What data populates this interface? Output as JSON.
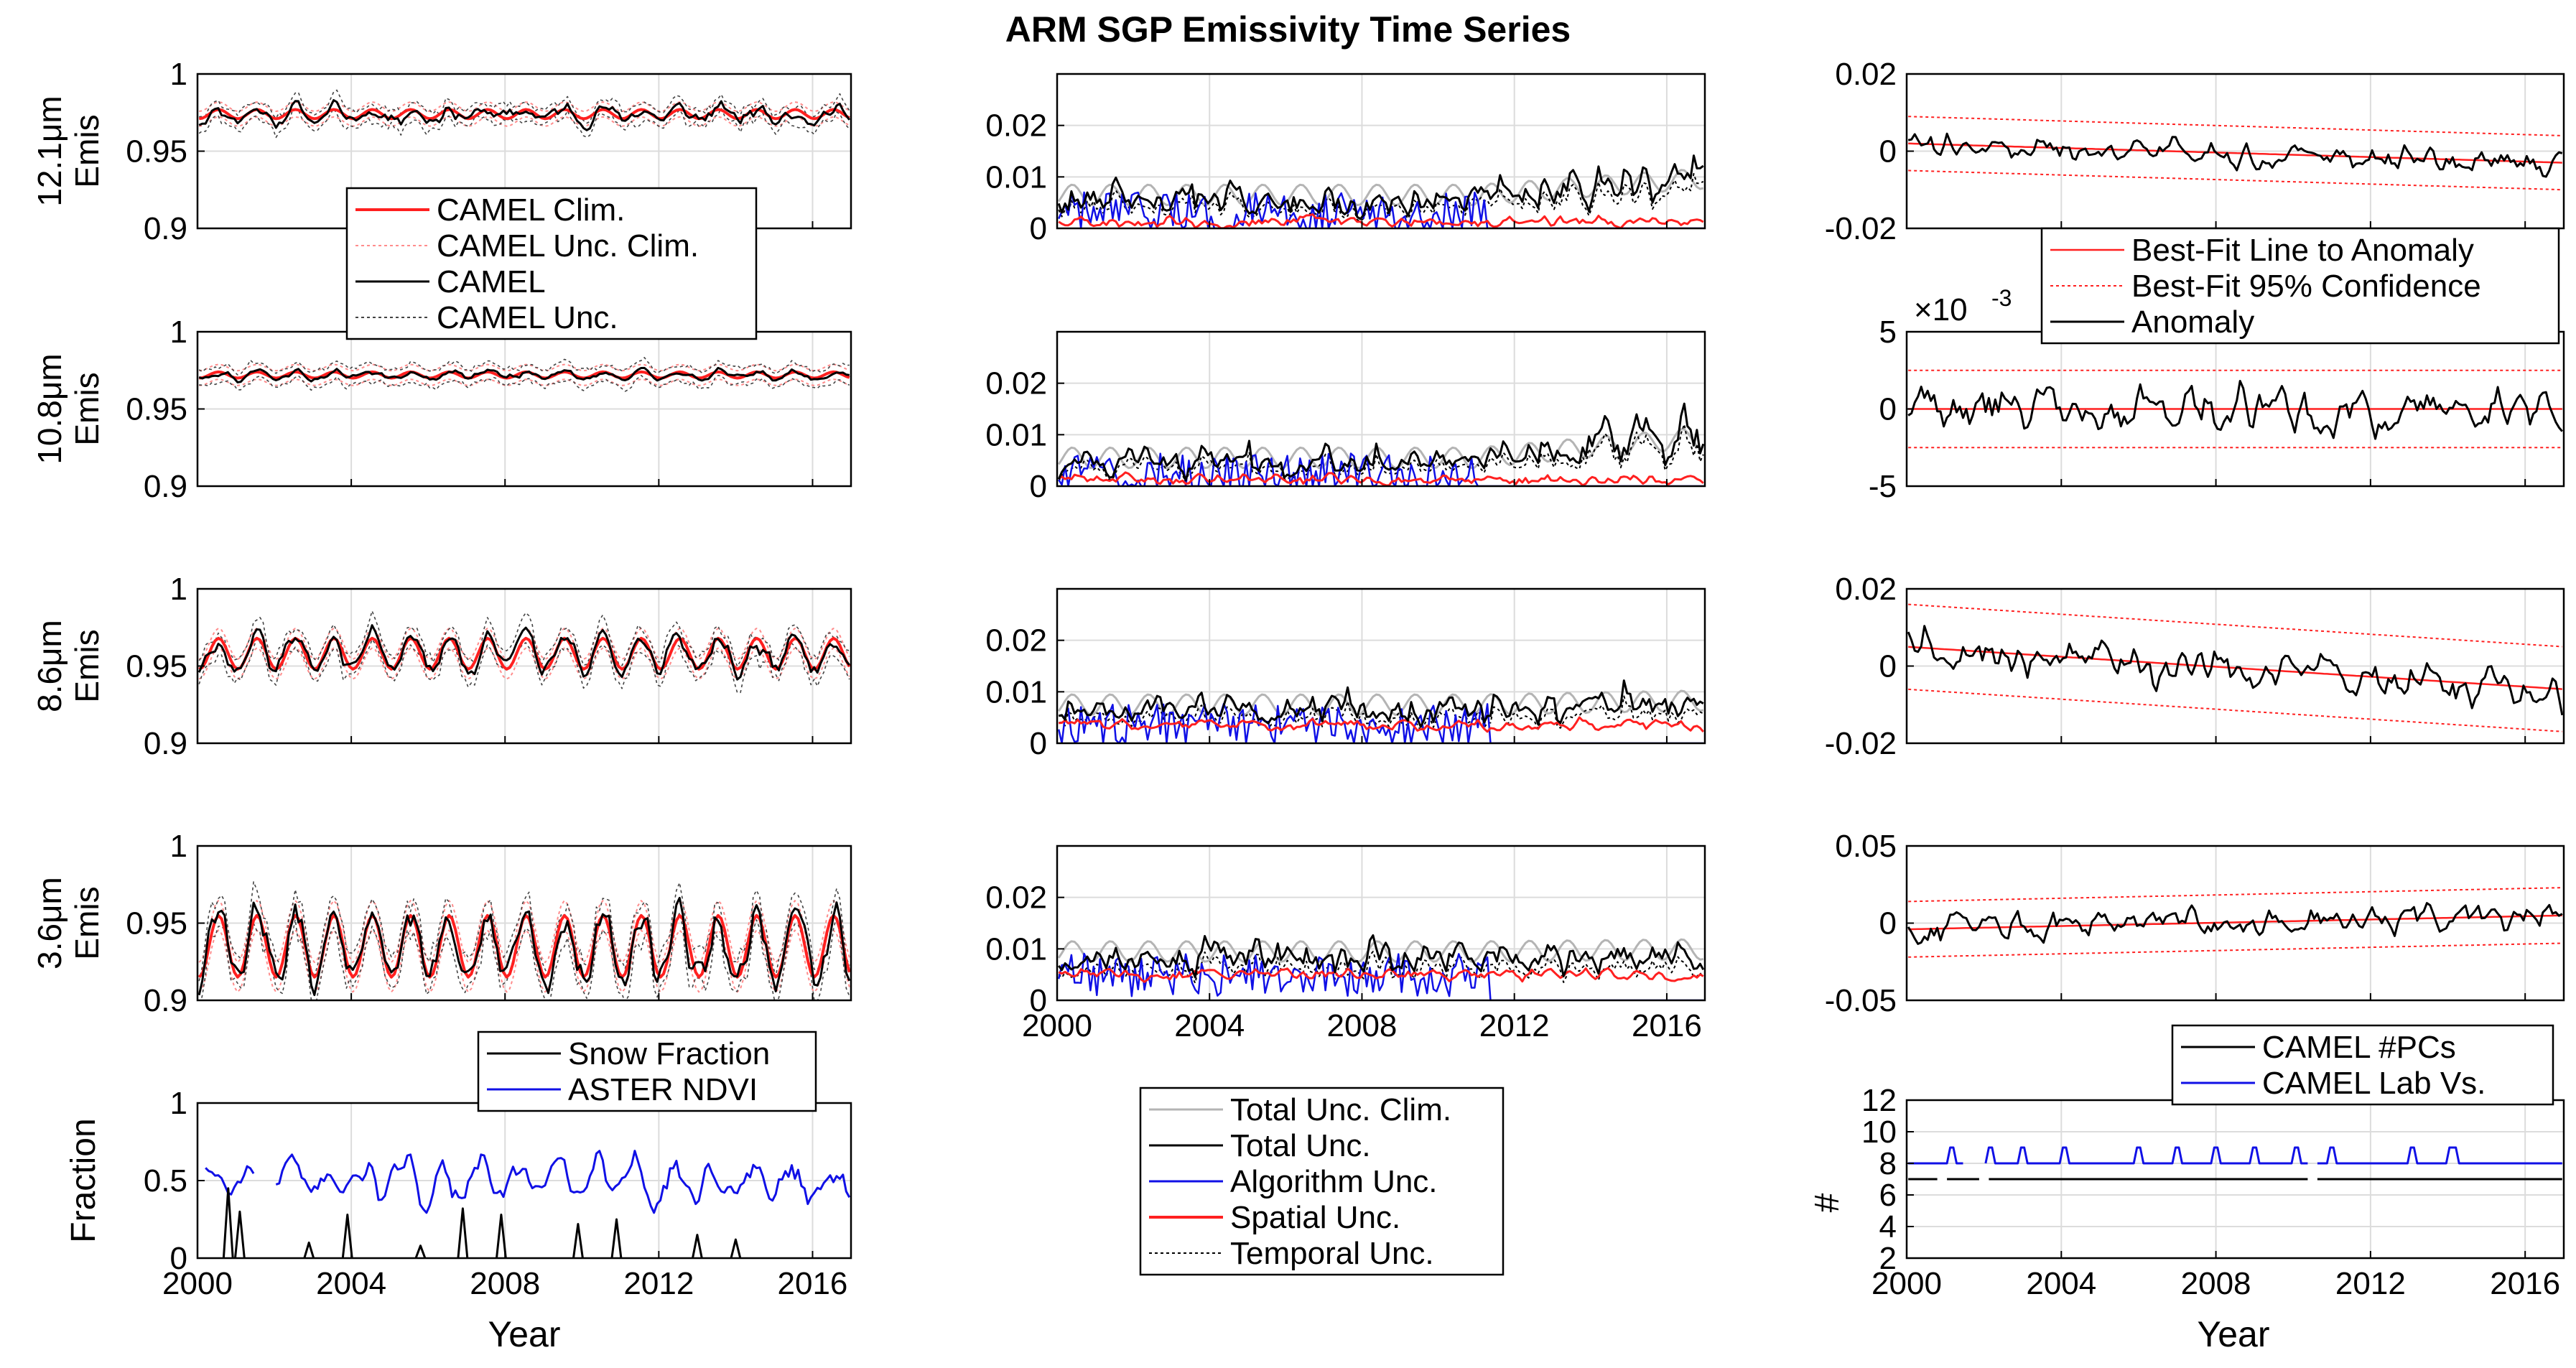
{
  "figure_title": "ARM SGP Emissivity Time Series",
  "colors": {
    "black": "#000000",
    "red": "#ff2020",
    "light_red": "#ff8c8c",
    "gray": "#b4b4b4",
    "dark_gray": "#444444",
    "blue": "#1010e6",
    "grid": "#dcdcdc"
  },
  "x_axis": {
    "ticks": [
      "2000",
      "2004",
      "2008",
      "2012",
      "2016"
    ],
    "xlim": [
      2000,
      2017
    ],
    "xlabel": "Year"
  },
  "left_legend": [
    "CAMEL Clim.",
    "CAMEL Unc. Clim.",
    "CAMEL",
    "CAMEL Unc."
  ],
  "middle_legend": [
    "Total Unc. Clim.",
    "Total Unc.",
    "Algorithm Unc.",
    "Spatial Unc.",
    "Temporal Unc."
  ],
  "right_legend": [
    "Best-Fit Line to Anomaly",
    "Best-Fit 95% Confidence",
    "Anomaly"
  ],
  "bottom_left_legend": [
    "Snow Fraction",
    "ASTER NDVI"
  ],
  "bottom_right_legend": [
    "CAMEL #PCs",
    "CAMEL Lab Vs."
  ],
  "chart_data": [
    {
      "id": "emis-12um",
      "type": "line",
      "ylabel_line1": "12.1μm",
      "ylabel_line2": "Emis",
      "ylim": [
        0.9,
        1.0
      ],
      "yticks": [
        "0.9",
        "0.95",
        "1"
      ],
      "clim": 0.974,
      "clim_amp": 0.003,
      "noise": 0.005,
      "unc": 0.006
    },
    {
      "id": "emis-10um",
      "type": "line",
      "ylabel_line1": "10.8μm",
      "ylabel_line2": "Emis",
      "ylim": [
        0.9,
        1.0
      ],
      "yticks": [
        "0.9",
        "0.95",
        "1"
      ],
      "clim": 0.972,
      "clim_amp": 0.002,
      "noise": 0.002,
      "unc": 0.006
    },
    {
      "id": "emis-8um",
      "type": "line",
      "ylabel_line1": "8.6μm",
      "ylabel_line2": "Emis",
      "ylim": [
        0.9,
        1.0
      ],
      "yticks": [
        "0.9",
        "0.95",
        "1"
      ],
      "clim": 0.958,
      "clim_amp": 0.01,
      "noise": 0.006,
      "unc": 0.008
    },
    {
      "id": "emis-3um",
      "type": "line",
      "ylabel_line1": "3.6μm",
      "ylabel_line2": "Emis",
      "ylim": [
        0.9,
        1.0
      ],
      "yticks": [
        "0.9",
        "0.95",
        "1"
      ],
      "clim": 0.935,
      "clim_amp": 0.02,
      "noise": 0.012,
      "unc": 0.012
    },
    {
      "id": "frac",
      "type": "line",
      "ylabel": "Fraction",
      "ylim": [
        0,
        1
      ],
      "yticks": [
        "0",
        "0.5",
        "1"
      ],
      "ndvi_mean": 0.5,
      "snow_events": [
        [
          2000.8,
          0.45
        ],
        [
          2001.1,
          0.3
        ],
        [
          2002.9,
          0.1
        ],
        [
          2003.9,
          0.28
        ],
        [
          2005.8,
          0.08
        ],
        [
          2006.9,
          0.32
        ],
        [
          2007.9,
          0.28
        ],
        [
          2009.9,
          0.22
        ],
        [
          2010.9,
          0.25
        ],
        [
          2013.0,
          0.15
        ],
        [
          2014.0,
          0.12
        ]
      ]
    },
    {
      "id": "unc-12um",
      "type": "line",
      "ylim": [
        0,
        0.03
      ],
      "yticks": [
        "0",
        "0.01",
        "0.02"
      ],
      "tot": 0.004,
      "trend": 0.008
    },
    {
      "id": "unc-10um",
      "type": "line",
      "ylim": [
        0,
        0.03
      ],
      "yticks": [
        "0",
        "0.01",
        "0.02"
      ],
      "tot": 0.003,
      "trend": 0.01
    },
    {
      "id": "unc-8um",
      "type": "line",
      "ylim": [
        0,
        0.03
      ],
      "yticks": [
        "0",
        "0.01",
        "0.02"
      ],
      "tot": 0.005,
      "trend": 0.002
    },
    {
      "id": "unc-3um",
      "type": "line",
      "ylim": [
        0,
        0.03
      ],
      "yticks": [
        "0",
        "0.01",
        "0.02"
      ],
      "tot": 0.007,
      "trend": 0.001
    },
    {
      "id": "anom-12um",
      "type": "line",
      "ylim": [
        -0.02,
        0.02
      ],
      "yticks": [
        "-0.02",
        "0",
        "0.02"
      ],
      "fit_start": 0.002,
      "fit_end": -0.003,
      "ci": 0.007,
      "noise": 0.003
    },
    {
      "id": "anom-10um",
      "type": "line",
      "ylim": [
        -0.005,
        0.005
      ],
      "yticks": [
        "-5",
        "0",
        "5"
      ],
      "ytick_values": [
        -0.005,
        0,
        0.005
      ],
      "exponent": "×10",
      "exponent_power": "-3",
      "fit_start": 0.0,
      "fit_end": 0.0,
      "ci": 0.0025,
      "noise": 0.0013
    },
    {
      "id": "anom-8um",
      "type": "line",
      "ylim": [
        -0.02,
        0.02
      ],
      "yticks": [
        "-0.02",
        "0",
        "0.02"
      ],
      "fit_start": 0.005,
      "fit_end": -0.006,
      "ci": 0.011,
      "noise": 0.005
    },
    {
      "id": "anom-3um",
      "type": "line",
      "ylim": [
        -0.05,
        0.05
      ],
      "yticks": [
        "-0.05",
        "0",
        "0.05"
      ],
      "fit_start": -0.004,
      "fit_end": 0.005,
      "ci": 0.018,
      "noise": 0.009
    },
    {
      "id": "pcs",
      "type": "line",
      "ylabel": "#",
      "ylim": [
        2,
        12
      ],
      "yticks": [
        "2",
        "4",
        "6",
        "8",
        "10",
        "12"
      ],
      "pcs_value": 7,
      "labvs_value": 8,
      "labvs_peak": 9
    }
  ]
}
